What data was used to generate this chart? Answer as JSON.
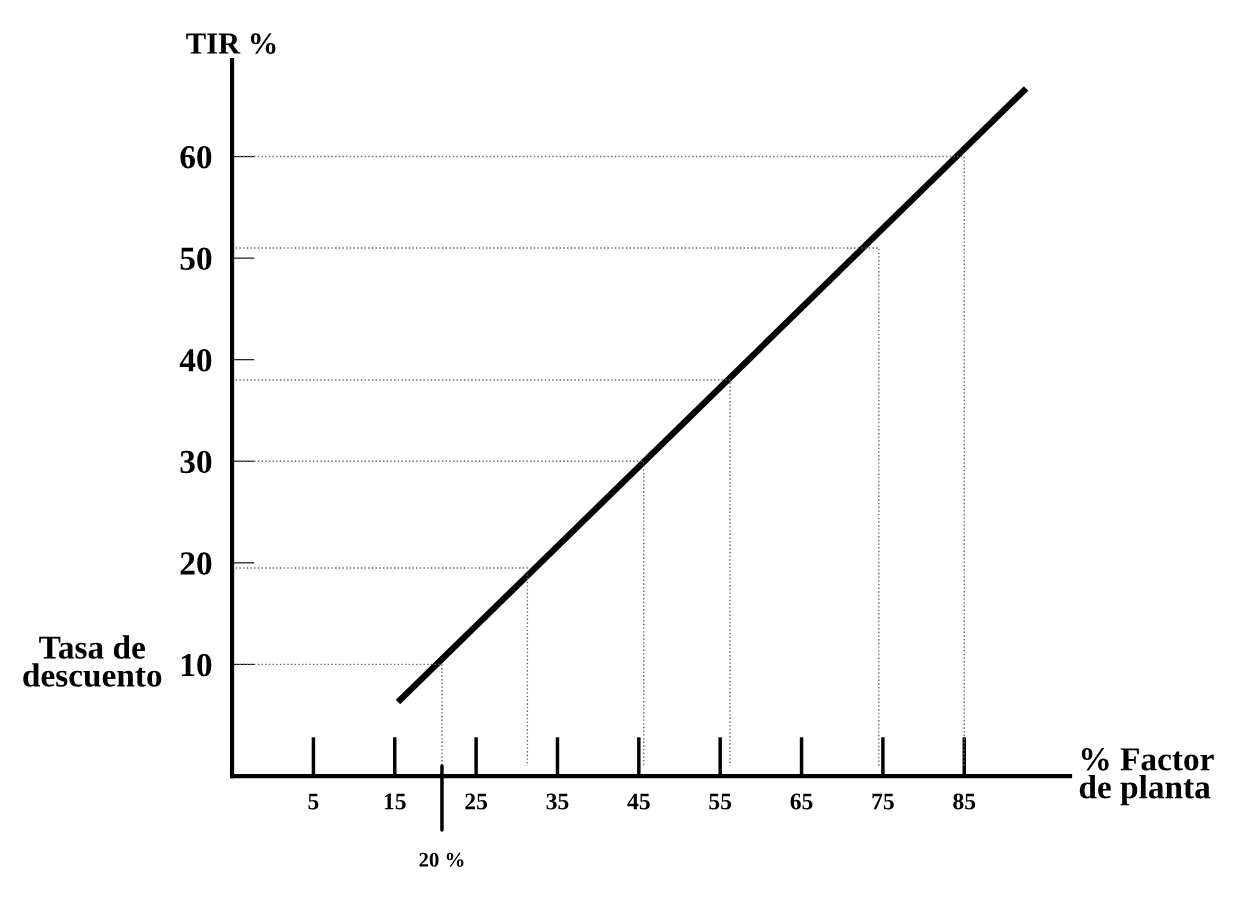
{
  "chart_data": {
    "type": "line",
    "xlabel": "% Factor\nde planta",
    "ylabel": "TIR %",
    "xlim": [
      -5,
      98
    ],
    "ylim": [
      -1,
      69.5
    ],
    "xticks": [
      5,
      15,
      25,
      35,
      45,
      55,
      65,
      75,
      85
    ],
    "yticks": [
      10,
      20,
      30,
      40,
      50,
      60
    ],
    "grid": false,
    "legend": false,
    "marker": "none",
    "series": [
      {
        "color": "#000000",
        "x": [
          15.4,
          92.6
        ],
        "values": [
          6.3,
          66.7
        ],
        "line_style": "solid"
      },
      {
        "color": "#666666",
        "x": [
          -5,
          20.8,
          20.8
        ],
        "values": [
          10,
          10,
          0
        ],
        "line_style": "dotted"
      },
      {
        "color": "#666666",
        "x": [
          -5,
          31.3,
          31.3
        ],
        "values": [
          19.5,
          19.5,
          0
        ],
        "line_style": "dotted"
      },
      {
        "color": "#666666",
        "x": [
          -5,
          45.6,
          45.6
        ],
        "values": [
          30,
          30,
          0
        ],
        "line_style": "dotted"
      },
      {
        "color": "#666666",
        "x": [
          -5,
          56.2,
          56.2
        ],
        "values": [
          38,
          38,
          0
        ],
        "line_style": "dotted"
      },
      {
        "color": "#666666",
        "x": [
          -5,
          74.5,
          74.5
        ],
        "values": [
          51,
          51,
          0
        ],
        "line_style": "dotted"
      },
      {
        "color": "#666666",
        "x": [
          -5,
          85,
          85
        ],
        "values": [
          60,
          60,
          0
        ],
        "line_style": "dotted"
      }
    ],
    "annotations": [
      {
        "text": "20 %",
        "x": 20.8,
        "y": 0
      },
      {
        "text": "Tasa de\ndescuento",
        "x": -5,
        "y": 10
      }
    ]
  }
}
